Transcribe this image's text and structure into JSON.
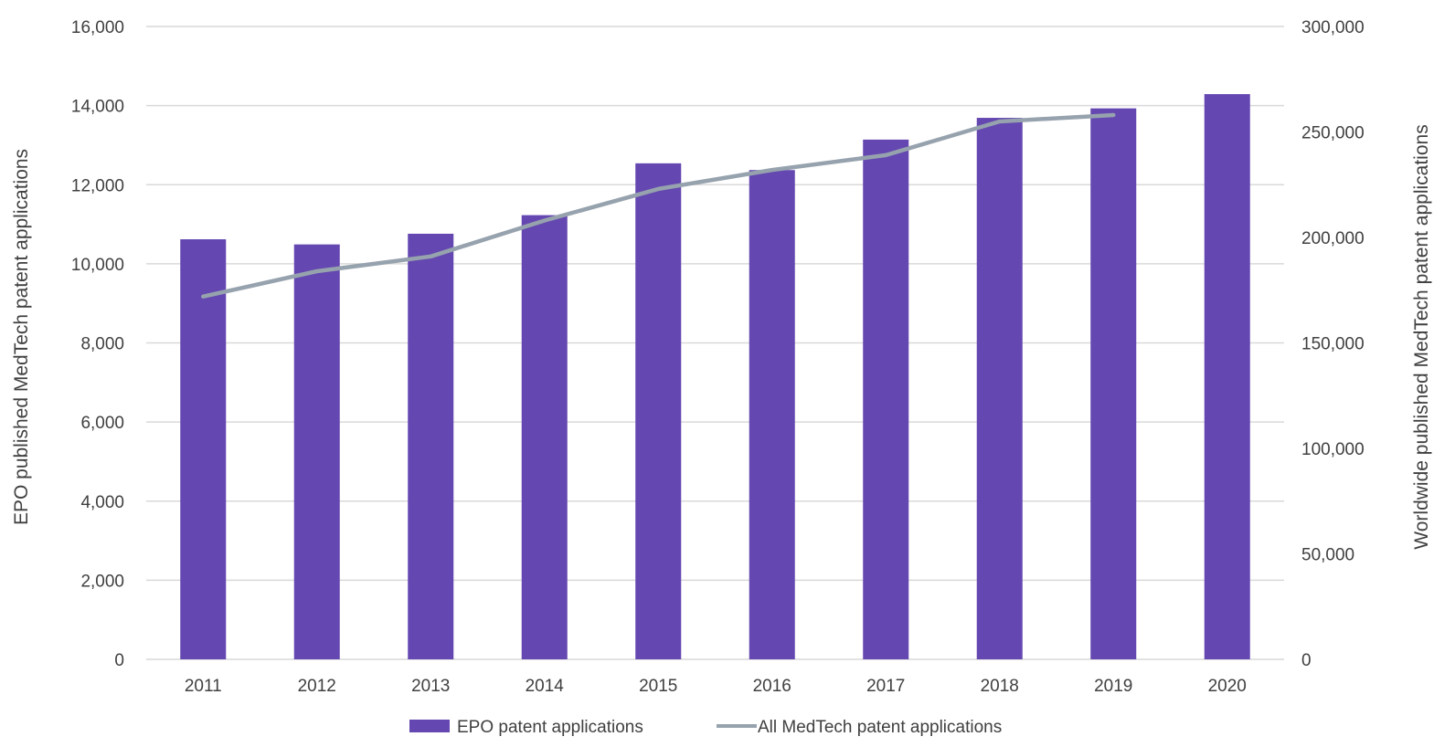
{
  "chart_data": {
    "type": "bar",
    "categories": [
      "2011",
      "2012",
      "2013",
      "2014",
      "2015",
      "2016",
      "2017",
      "2018",
      "2019",
      "2020"
    ],
    "series": [
      {
        "name": "EPO patent applications",
        "kind": "bar",
        "axis": "left",
        "color": "#6447b0",
        "values": [
          10620,
          10490,
          10760,
          11230,
          12540,
          12370,
          13140,
          13690,
          13930,
          14290
        ]
      },
      {
        "name": "All MedTech patent applications",
        "kind": "line",
        "axis": "right",
        "color": "#96a2ad",
        "values": [
          172000,
          184000,
          191000,
          208000,
          223000,
          232000,
          239000,
          255000,
          258000,
          null
        ]
      }
    ],
    "ylabel": "EPO published MedTech patent applications",
    "y2label": "Worldwide published MedTech patent applications",
    "xlabel": "",
    "ylim": [
      0,
      16000
    ],
    "y2lim": [
      0,
      300000
    ],
    "yticks": [
      "0",
      "2,000",
      "4,000",
      "6,000",
      "8,000",
      "10,000",
      "12,000",
      "14,000",
      "16,000"
    ],
    "y2ticks": [
      "0",
      "50,000",
      "100,000",
      "150,000",
      "200,000",
      "250,000",
      "300,000"
    ],
    "grid": true,
    "legend": "bottom",
    "gridColor": "#d9d9d9",
    "textColor": "#404040"
  }
}
